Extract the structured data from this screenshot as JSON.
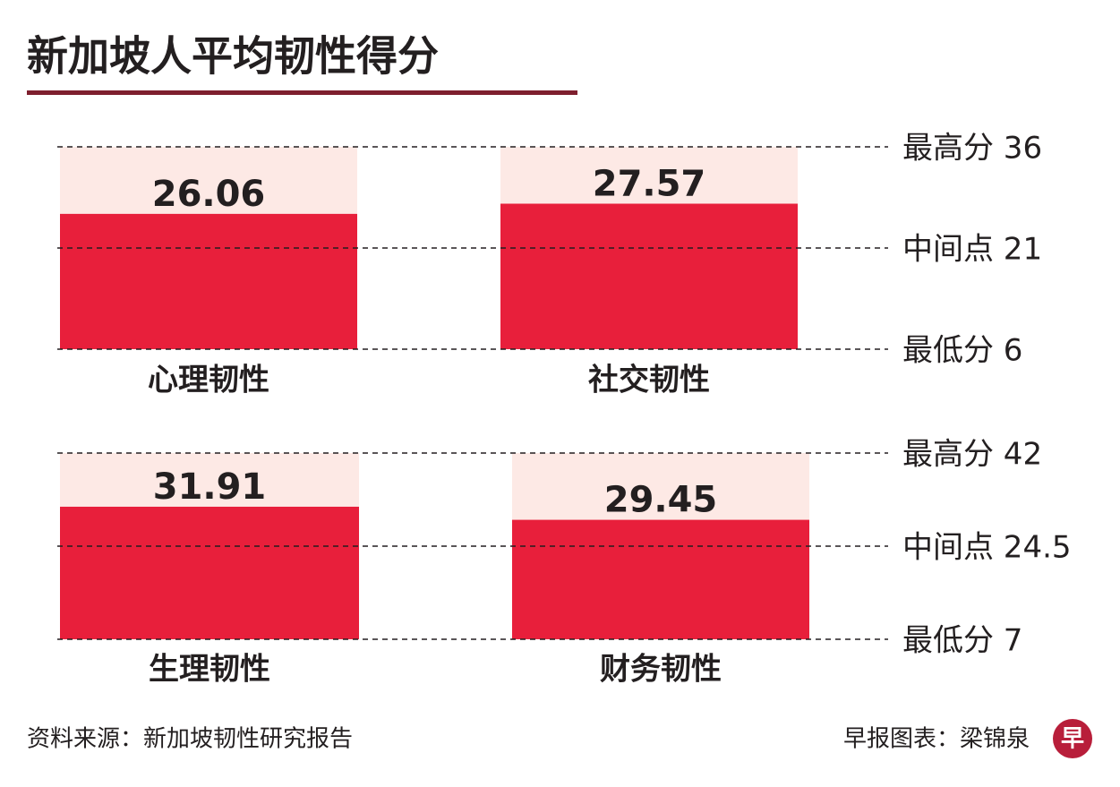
{
  "header": {
    "title": "新加坡人平均韧性得分"
  },
  "chart_data": [
    {
      "type": "bar",
      "categories": [
        "心理韧性",
        "社交韧性"
      ],
      "values": [
        26.06,
        27.57
      ],
      "color": "#e81f3b",
      "background_color": "#fde9e5",
      "ylim": [
        6,
        36
      ],
      "yticks": [
        {
          "value": 36,
          "label": "最高分 36"
        },
        {
          "value": 21,
          "label": "中间点 21"
        },
        {
          "value": 6,
          "label": "最低分 6"
        }
      ],
      "grid": true
    },
    {
      "type": "bar",
      "categories": [
        "生理韧性",
        "财务韧性"
      ],
      "values": [
        31.91,
        29.45
      ],
      "color": "#e81f3b",
      "background_color": "#fde9e5",
      "ylim": [
        7,
        42
      ],
      "yticks": [
        {
          "value": 42,
          "label": "最高分 42"
        },
        {
          "value": 24.5,
          "label": "中间点 24.5"
        },
        {
          "value": 7,
          "label": "最低分 7"
        }
      ],
      "grid": true
    }
  ],
  "footer": {
    "source": "资料来源：新加坡韧性研究报告",
    "credit": "早报图表：梁锦泉",
    "logo": "早"
  }
}
